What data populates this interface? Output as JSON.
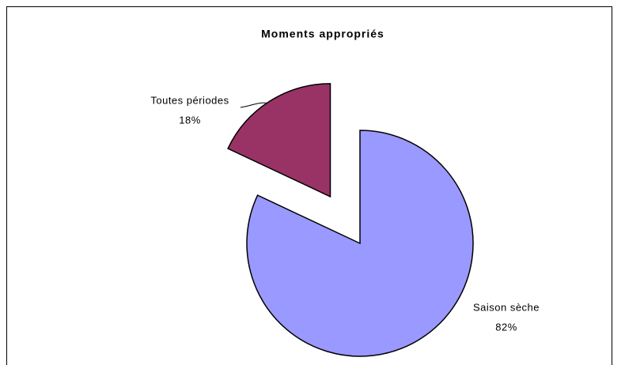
{
  "chart_data": {
    "type": "pie",
    "title": "Moments appropriés",
    "categories": [
      "Saison sèche",
      "Toutes périodes"
    ],
    "values": [
      82,
      18
    ],
    "value_labels": [
      "82%",
      "18%"
    ],
    "colors": [
      "#9999ff",
      "#993366"
    ]
  }
}
